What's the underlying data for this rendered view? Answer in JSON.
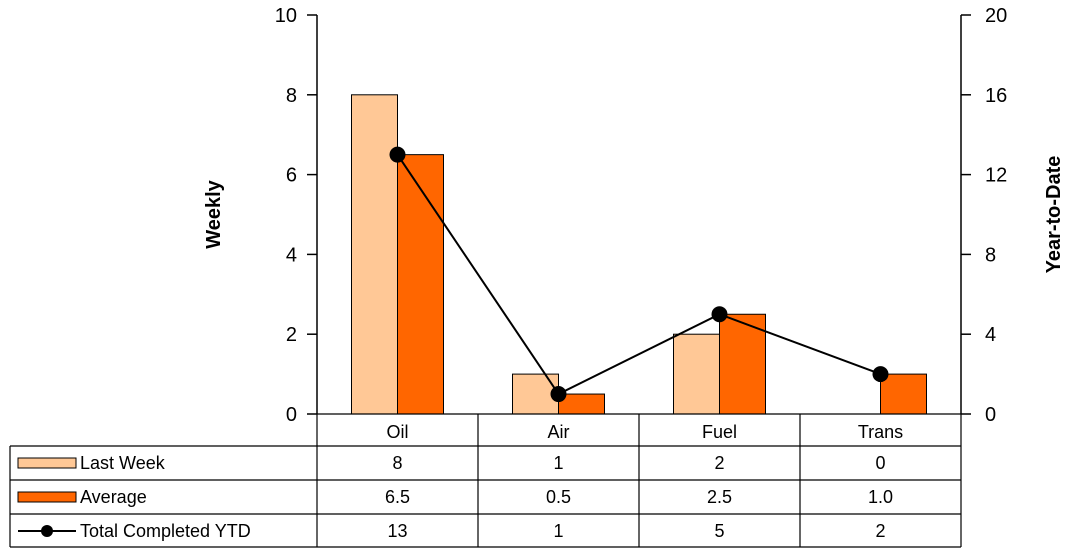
{
  "chart_data": {
    "type": "bar",
    "categories": [
      "Oil",
      "Air",
      "Fuel",
      "Trans"
    ],
    "y_left": {
      "label": "Weekly",
      "ylim": [
        0,
        10
      ],
      "ticks": [
        "0",
        "2",
        "4",
        "6",
        "8",
        "10"
      ]
    },
    "y_right": {
      "label": "Year-to-Date",
      "ylim": [
        0,
        20
      ],
      "ticks": [
        "0",
        "4",
        "8",
        "12",
        "16",
        "20"
      ]
    },
    "series": [
      {
        "name": "Last Week",
        "kind": "bar",
        "axis": "left",
        "color": "#FFC896",
        "values": [
          8,
          1,
          2,
          0
        ],
        "table_values": [
          "8",
          "1",
          "2",
          "0"
        ]
      },
      {
        "name": "Average",
        "kind": "bar",
        "axis": "left",
        "color": "#FF6600",
        "values": [
          6.5,
          0.5,
          2.5,
          1.0
        ],
        "table_values": [
          "6.5",
          "0.5",
          "2.5",
          "1.0"
        ]
      },
      {
        "name": "Total Completed YTD",
        "kind": "line",
        "axis": "right",
        "color": "#000000",
        "values": [
          13,
          1,
          5,
          2
        ],
        "table_values": [
          "13",
          "1",
          "5",
          "2"
        ]
      }
    ],
    "grid": false,
    "legend": "data-table-below"
  }
}
